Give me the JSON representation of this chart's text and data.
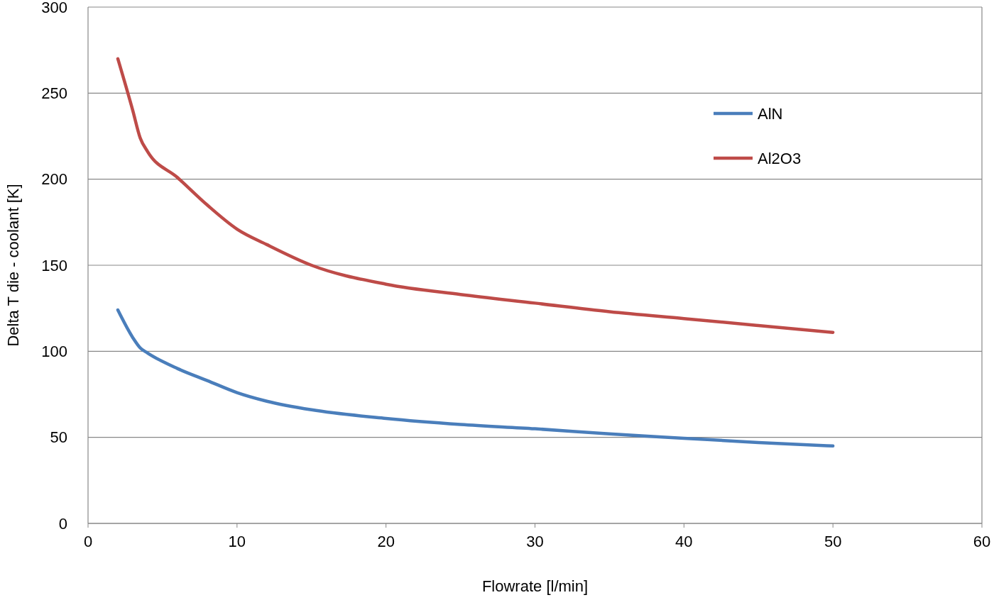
{
  "chart_data": {
    "type": "line",
    "xlabel": "Flowrate [l/min]",
    "ylabel": "Delta T die - coolant [K]",
    "xlim": [
      0,
      60
    ],
    "xticks": [
      0,
      10,
      20,
      30,
      40,
      50,
      60
    ],
    "ylim": [
      0,
      300
    ],
    "yticks": [
      0,
      50,
      100,
      150,
      200,
      250,
      300
    ],
    "grid": "y",
    "legend": "top right",
    "marker": "none",
    "line_style": "solid",
    "series": [
      {
        "name": "AlN",
        "color": "#4a7ebb",
        "x": [
          2,
          3,
          3.5,
          4,
          6,
          8,
          10,
          12,
          15,
          20,
          25,
          30,
          35,
          40,
          45,
          50
        ],
        "values": [
          124,
          108,
          102,
          99,
          90,
          83,
          76,
          71,
          66,
          61,
          57.5,
          55,
          52,
          49.5,
          47,
          45
        ]
      },
      {
        "name": "Al2O3",
        "color": "#be4b48",
        "x": [
          2,
          3,
          3.5,
          4,
          6,
          8,
          10,
          12,
          15,
          20,
          25,
          30,
          35,
          40,
          45,
          50
        ],
        "values": [
          270,
          240,
          224,
          216,
          201,
          185,
          171,
          162,
          150,
          139,
          133,
          128,
          123,
          119,
          115,
          111
        ]
      }
    ]
  }
}
